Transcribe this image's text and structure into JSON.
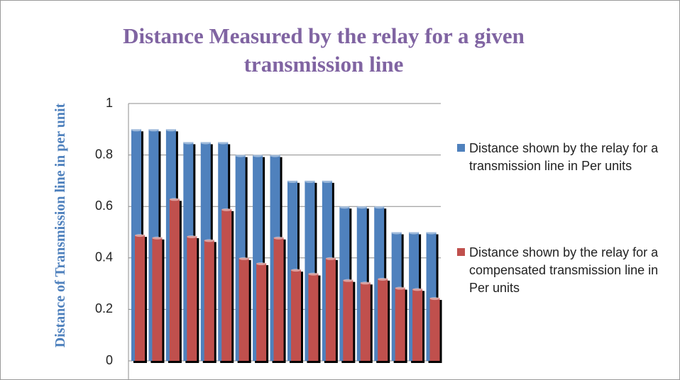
{
  "chart_data": {
    "type": "bar",
    "title": "Distance Measured by the relay for a given transmission line",
    "y_label": "Distance of Transmission line in per unit",
    "categories": [
      null,
      null,
      null,
      null,
      null,
      null,
      null,
      null,
      null,
      null,
      null,
      null,
      null,
      null,
      null,
      null,
      null,
      null
    ],
    "series": [
      {
        "name": "Distance shown by the relay for a transmission line in Per units",
        "color": "#4f81bd",
        "values": [
          0.9,
          0.9,
          0.9,
          0.85,
          0.85,
          0.85,
          0.8,
          0.8,
          0.8,
          0.7,
          0.7,
          0.7,
          0.6,
          0.6,
          0.6,
          0.5,
          0.5,
          0.5
        ]
      },
      {
        "name": "Distance shown by the relay for a compensated transmission line in Per units",
        "color": "#c0504d",
        "values": [
          0.49,
          0.48,
          0.63,
          0.485,
          0.47,
          0.59,
          0.4,
          0.38,
          0.48,
          0.355,
          0.34,
          0.4,
          0.315,
          0.305,
          0.32,
          0.285,
          0.28,
          0.245
        ]
      }
    ],
    "ylim": [
      0,
      1
    ],
    "yticks": [
      0,
      0.2,
      0.4,
      0.6,
      0.8,
      1
    ],
    "grid": true
  }
}
